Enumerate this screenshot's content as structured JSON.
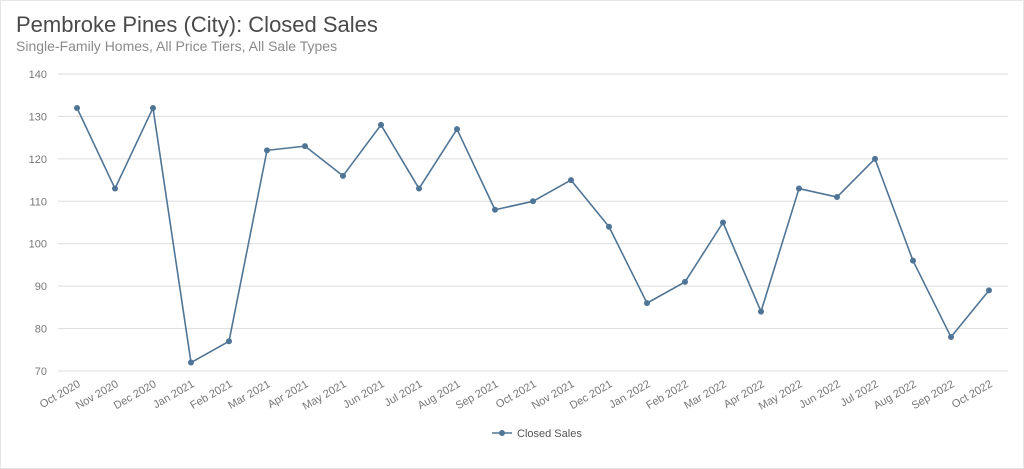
{
  "chart_data": {
    "type": "line",
    "title": "Pembroke Pines (City): Closed Sales",
    "subtitle": "Single-Family Homes, All Price Tiers, All Sale Types",
    "categories": [
      "Oct 2020",
      "Nov 2020",
      "Dec 2020",
      "Jan 2021",
      "Feb 2021",
      "Mar 2021",
      "Apr 2021",
      "May 2021",
      "Jun 2021",
      "Jul 2021",
      "Aug 2021",
      "Sep 2021",
      "Oct 2021",
      "Nov 2021",
      "Dec 2021",
      "Jan 2022",
      "Feb 2022",
      "Mar 2022",
      "Apr 2022",
      "May 2022",
      "Jun 2022",
      "Jul 2022",
      "Aug 2022",
      "Sep 2022",
      "Oct 2022"
    ],
    "series": [
      {
        "name": "Closed Sales",
        "color": "#4f7596",
        "values": [
          132,
          113,
          132,
          72,
          77,
          122,
          123,
          116,
          128,
          113,
          127,
          108,
          110,
          115,
          104,
          86,
          91,
          105,
          84,
          113,
          111,
          120,
          96,
          78,
          89
        ]
      }
    ],
    "ylim": [
      70,
      140
    ],
    "yticks": [
      70,
      80,
      90,
      100,
      110,
      120,
      130,
      140
    ],
    "grid": true,
    "legend": "bottom-center",
    "colors": {
      "grid": "#dddddd",
      "line": "#4f7596"
    }
  }
}
